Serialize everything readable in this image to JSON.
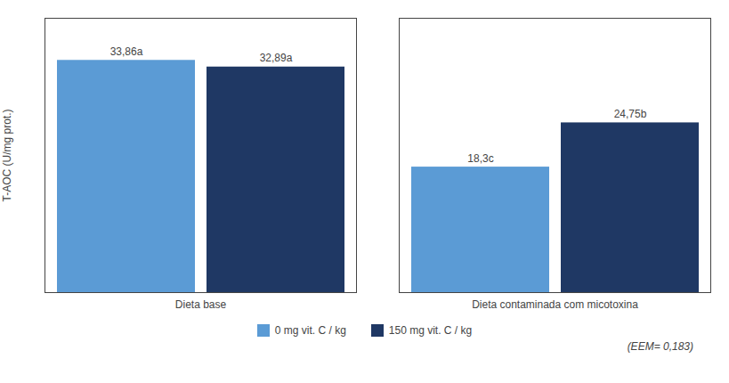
{
  "chart_data": {
    "type": "bar",
    "categories": [
      "Dieta base",
      "Dieta contaminada com micotoxina"
    ],
    "series": [
      {
        "name": "0 mg vit. C / kg",
        "color": "#5b9bd5",
        "values": [
          33.86,
          18.3
        ],
        "value_labels": [
          "33,86a",
          "18,3c"
        ]
      },
      {
        "name": "150 mg vit. C / kg",
        "color": "#1f3864",
        "values": [
          32.89,
          24.75
        ],
        "value_labels": [
          "32,89a",
          "24,75b"
        ]
      }
    ],
    "ylabel": "T-AOC (U/mg prot.)",
    "ylim": [
      0,
      40
    ],
    "yticks": [],
    "tick_labels": "x",
    "data_labels": true,
    "legend": "bottom",
    "annotation": "(EEM= 0,183)"
  }
}
